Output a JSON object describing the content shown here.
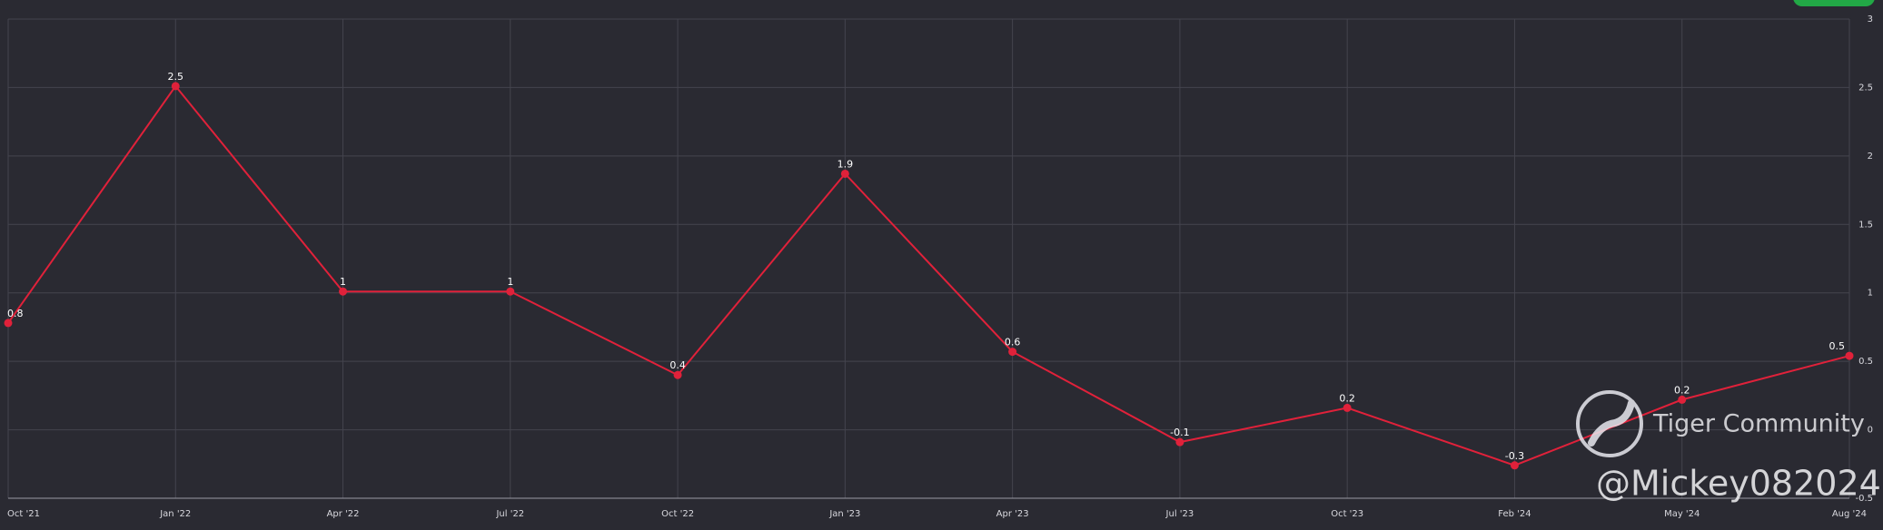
{
  "chart_data": {
    "type": "line",
    "categories": [
      "Oct '21",
      "Jan '22",
      "Apr '22",
      "Jul '22",
      "Oct '22",
      "Jan '23",
      "Apr '23",
      "Jul '23",
      "Oct '23",
      "Feb '24",
      "May '24",
      "Aug '24"
    ],
    "series": [
      {
        "color": "#e0213a",
        "values": [
          0.78,
          2.51,
          1.01,
          1.01,
          0.4,
          1.87,
          0.57,
          -0.09,
          0.16,
          -0.26,
          0.22,
          0.54
        ],
        "value_labels": [
          "0.8",
          "2.5",
          "1",
          "1",
          "0.4",
          "1.9",
          "0.6",
          "-0.1",
          "0.2",
          "-0.3",
          "0.2",
          "0.5"
        ]
      }
    ],
    "ylim": [
      -0.5,
      3
    ],
    "yticks": [
      -0.5,
      0,
      0.5,
      1,
      1.5,
      2,
      2.5,
      3
    ],
    "grid": true
  },
  "watermark": {
    "brand": "Tiger Community",
    "user": "@Mickey082024"
  }
}
